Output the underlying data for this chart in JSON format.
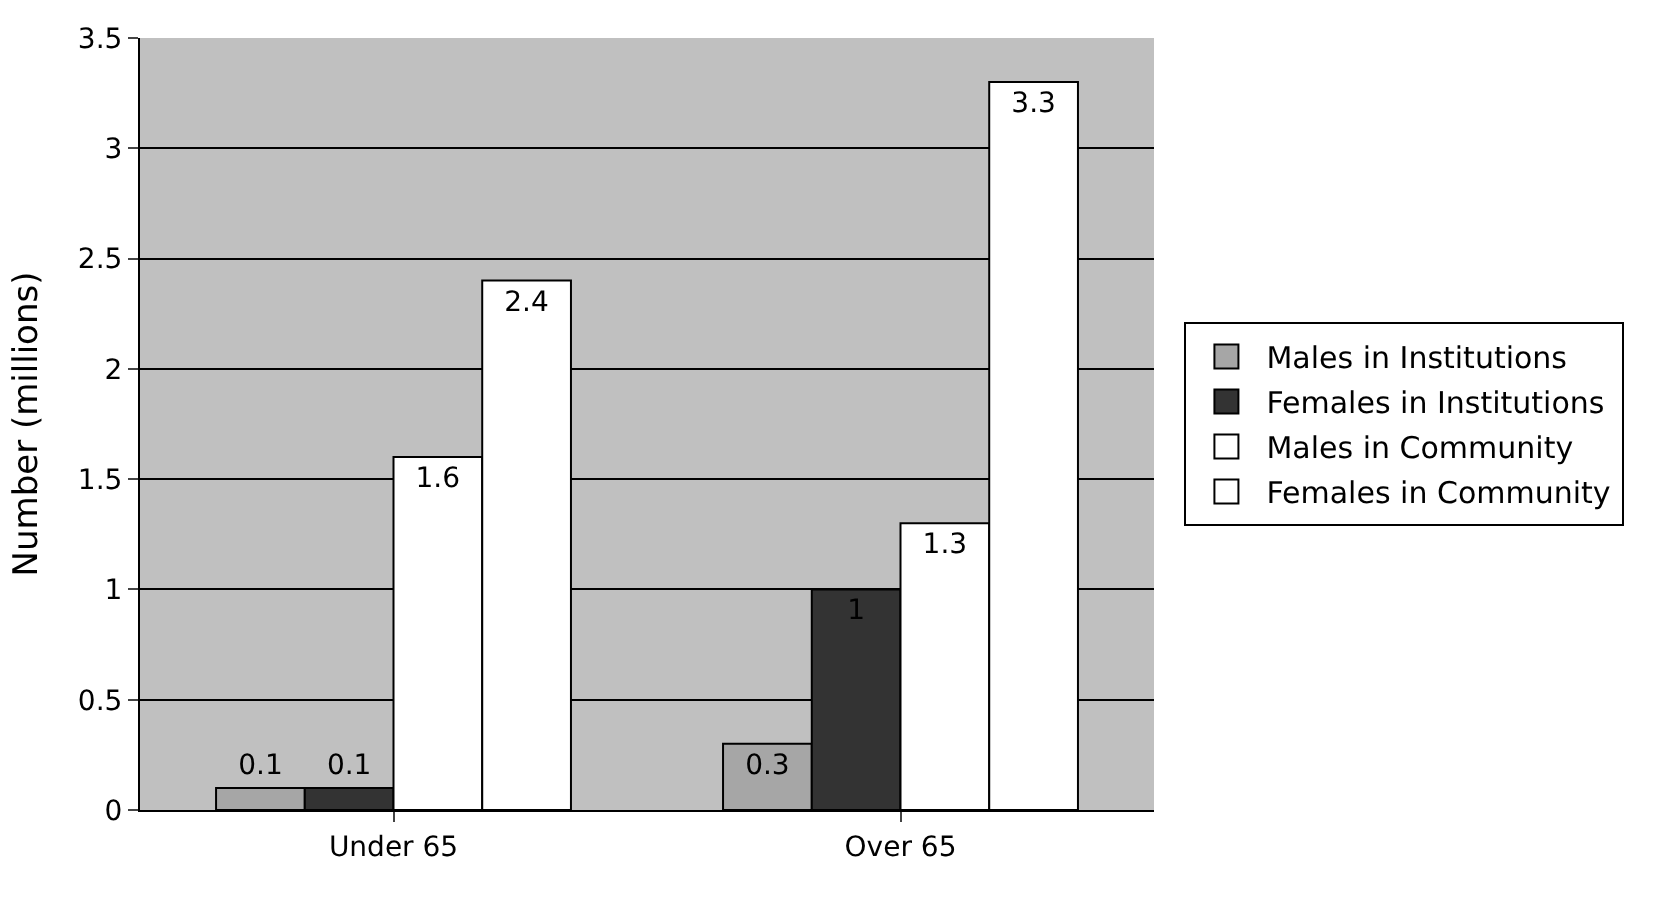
{
  "chart_data": {
    "type": "bar",
    "ylabel": "Number (millions)",
    "categories": [
      "Under 65",
      "Over 65"
    ],
    "series": [
      {
        "name": "Males in Institutions",
        "color": "#a6a6a6",
        "values": [
          0.1,
          0.3
        ]
      },
      {
        "name": "Females in Institutions",
        "color": "#333333",
        "values": [
          0.1,
          1
        ]
      },
      {
        "name": "Males in Community",
        "color": "#ffffff",
        "values": [
          1.6,
          1.3
        ]
      },
      {
        "name": "Females in Community",
        "color": "#ffffff",
        "values": [
          2.4,
          3.3
        ]
      }
    ],
    "ylim": [
      0,
      3.5
    ],
    "yticks": [
      0,
      0.5,
      1,
      1.5,
      2,
      2.5,
      3,
      3.5
    ],
    "grid": "y",
    "legend": "right",
    "data_labels": true
  }
}
